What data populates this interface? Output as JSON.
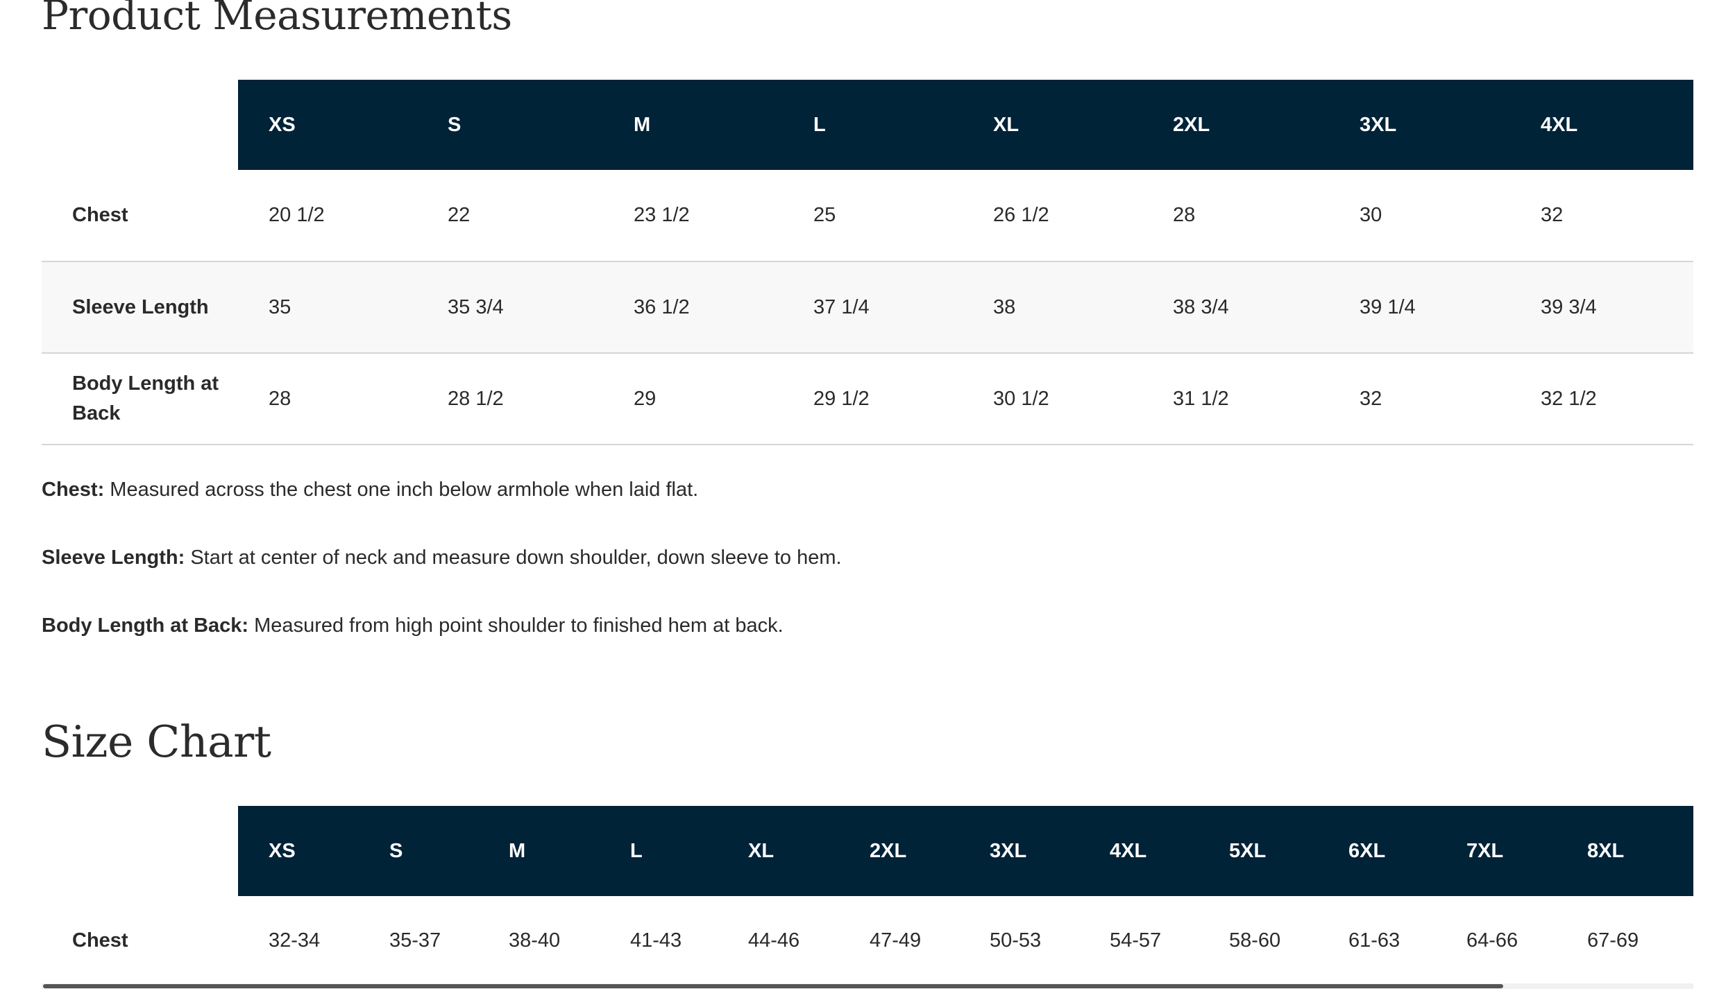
{
  "measurements": {
    "title": "Product Measurements",
    "sizes": [
      "XS",
      "S",
      "M",
      "L",
      "XL",
      "2XL",
      "3XL",
      "4XL"
    ],
    "rows": [
      {
        "label": "Chest",
        "values": [
          "20 1/2",
          "22",
          "23 1/2",
          "25",
          "26 1/2",
          "28",
          "30",
          "32"
        ]
      },
      {
        "label": "Sleeve Length",
        "values": [
          "35",
          "35 3/4",
          "36 1/2",
          "37 1/4",
          "38",
          "38 3/4",
          "39 1/4",
          "39 3/4"
        ]
      },
      {
        "label": "Body Length at Back",
        "values": [
          "28",
          "28 1/2",
          "29",
          "29 1/2",
          "30 1/2",
          "31 1/2",
          "32",
          "32 1/2"
        ]
      }
    ],
    "notes": [
      {
        "term": "Chest:",
        "text": " Measured across the chest one inch below armhole when laid flat."
      },
      {
        "term": "Sleeve Length:",
        "text": " Start at center of neck and measure down shoulder, down sleeve to hem."
      },
      {
        "term": "Body Length at Back:",
        "text": " Measured from high point shoulder to finished hem at back."
      }
    ]
  },
  "size_chart": {
    "title": "Size Chart",
    "sizes": [
      "XS",
      "S",
      "M",
      "L",
      "XL",
      "2XL",
      "3XL",
      "4XL",
      "5XL",
      "6XL",
      "7XL",
      "8XL"
    ],
    "rows": [
      {
        "label": "Chest",
        "values": [
          "32-34",
          "35-37",
          "38-40",
          "41-43",
          "44-46",
          "47-49",
          "50-53",
          "54-57",
          "58-60",
          "61-63",
          "64-66",
          "67-69"
        ]
      }
    ]
  },
  "colors": {
    "header_bg": "#002337",
    "header_text": "#ffffff",
    "row_alt": "#f8f8f8",
    "divider": "#d6d6d6"
  }
}
